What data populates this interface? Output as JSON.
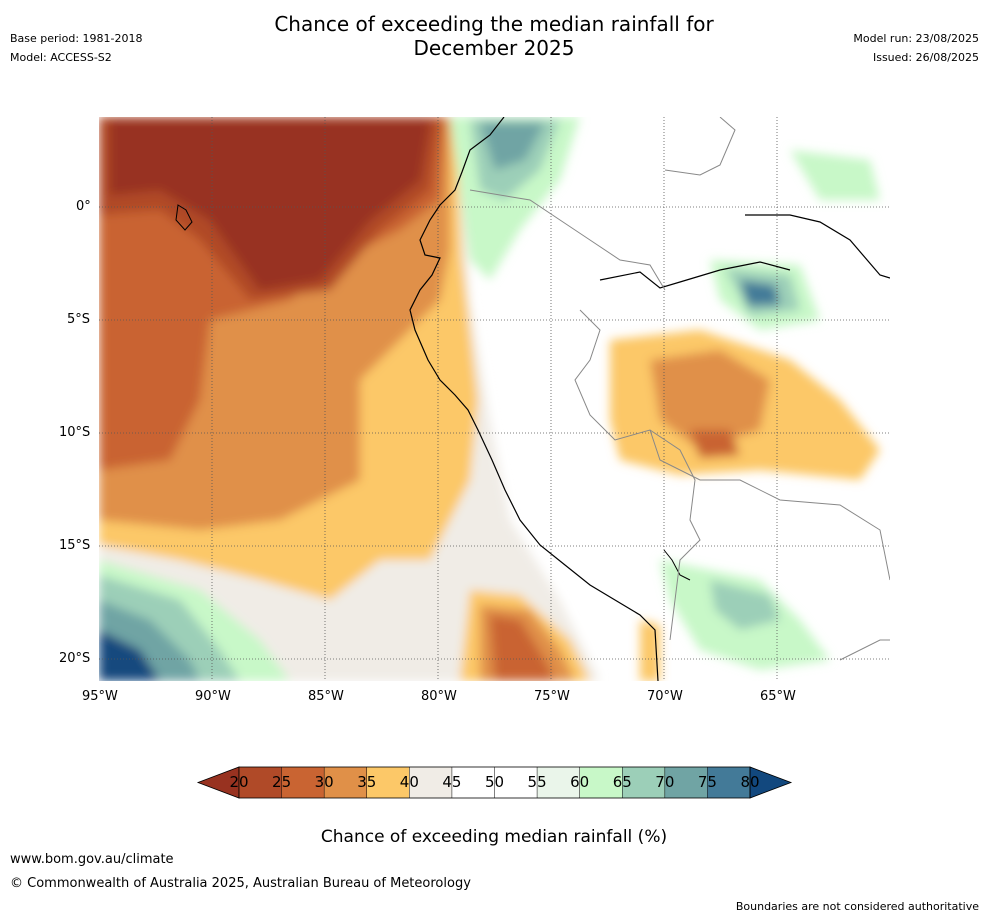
{
  "header": {
    "title_line1": "Chance of exceeding the median rainfall for",
    "title_line2": "December 2025",
    "base_period": "Base period: 1981-2018",
    "model": "Model: ACCESS-S2",
    "model_run": "Model run: 23/08/2025",
    "issued": "Issued: 26/08/2025"
  },
  "map": {
    "lat_labels": [
      "0°",
      "5°S",
      "10°S",
      "15°S",
      "20°S"
    ],
    "lon_labels": [
      "95°W",
      "90°W",
      "85°W",
      "80°W",
      "75°W",
      "70°W",
      "65°W"
    ]
  },
  "colorbar": {
    "ticks": [
      "20",
      "25",
      "30",
      "35",
      "40",
      "45",
      "50",
      "55",
      "60",
      "65",
      "70",
      "75",
      "80"
    ],
    "colors": [
      "#983220",
      "#b04a28",
      "#c96432",
      "#e09048",
      "#fcc868",
      "#f0ece6",
      "#ffffff",
      "#ffffff",
      "#eaf5ea",
      "#c8f8c8",
      "#9ccfb8",
      "#70a4a4",
      "#437a98",
      "#12487e"
    ],
    "label": "Chance of exceeding median rainfall (%)"
  },
  "footer": {
    "url": "www.bom.gov.au/climate",
    "copyright": "© Commonwealth of Australia 2025, Australian Bureau of Meteorology",
    "disclaimer": "Boundaries are not considered authoritative"
  }
}
